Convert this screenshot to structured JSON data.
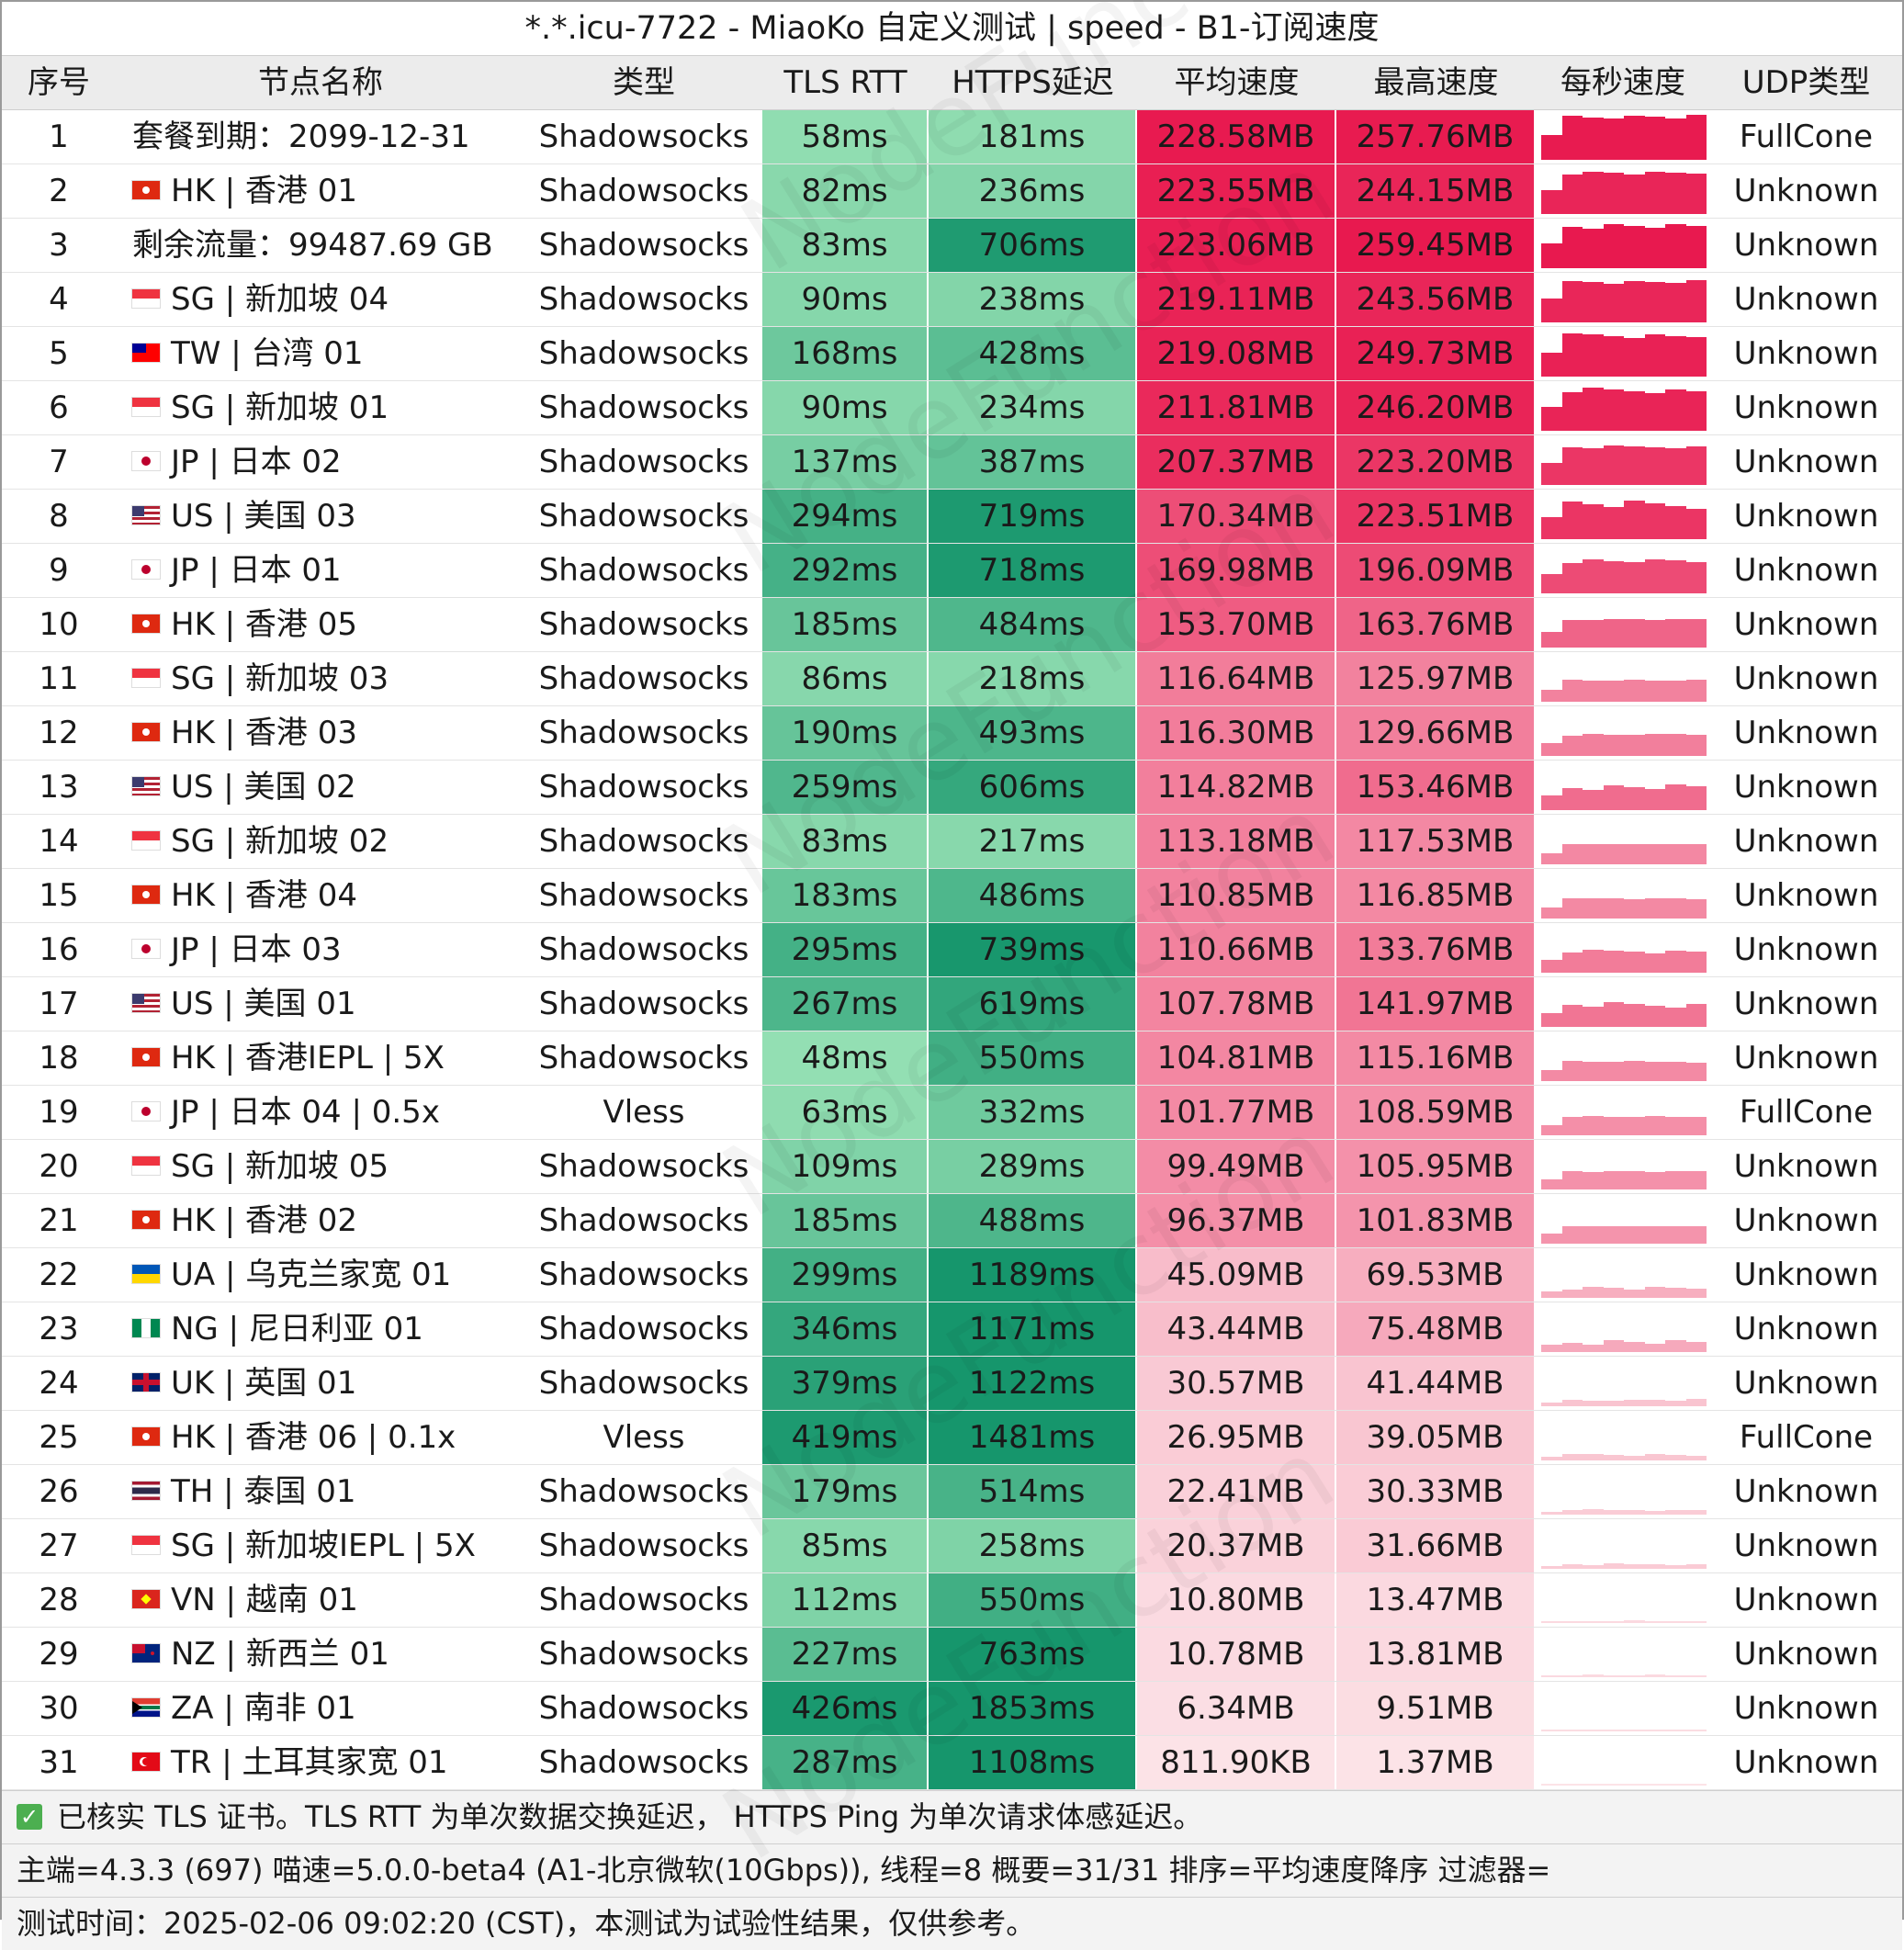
{
  "title": "*.*.icu-7722 - MiaoKo 自定义测试 | speed - B1-订阅速度",
  "headers": [
    "序号",
    "节点名称",
    "类型",
    "TLS RTT",
    "HTTPS延迟",
    "平均速度",
    "最高速度",
    "每秒速度",
    "UDP类型"
  ],
  "watermark": "NodeFunction",
  "rows": [
    {
      "no": "1",
      "flag": "",
      "name": "套餐到期：2099-12-31",
      "type": "Shadowsocks",
      "tls": "58ms",
      "https": "181ms",
      "avg": "228.58MB",
      "max": "257.76MB",
      "udp": "FullCone",
      "tls_ms": 58,
      "https_ms": 181,
      "avg_mb": 228.58,
      "max_mb": 257.76
    },
    {
      "no": "2",
      "flag": "HK",
      "name": "HK | 香港 01",
      "type": "Shadowsocks",
      "tls": "82ms",
      "https": "236ms",
      "avg": "223.55MB",
      "max": "244.15MB",
      "udp": "Unknown",
      "tls_ms": 82,
      "https_ms": 236,
      "avg_mb": 223.55,
      "max_mb": 244.15
    },
    {
      "no": "3",
      "flag": "",
      "name": "剩余流量：99487.69 GB",
      "type": "Shadowsocks",
      "tls": "83ms",
      "https": "706ms",
      "avg": "223.06MB",
      "max": "259.45MB",
      "udp": "Unknown",
      "tls_ms": 83,
      "https_ms": 706,
      "avg_mb": 223.06,
      "max_mb": 259.45
    },
    {
      "no": "4",
      "flag": "SG",
      "name": "SG | 新加坡 04",
      "type": "Shadowsocks",
      "tls": "90ms",
      "https": "238ms",
      "avg": "219.11MB",
      "max": "243.56MB",
      "udp": "Unknown",
      "tls_ms": 90,
      "https_ms": 238,
      "avg_mb": 219.11,
      "max_mb": 243.56
    },
    {
      "no": "5",
      "flag": "TW",
      "name": "TW | 台湾 01",
      "type": "Shadowsocks",
      "tls": "168ms",
      "https": "428ms",
      "avg": "219.08MB",
      "max": "249.73MB",
      "udp": "Unknown",
      "tls_ms": 168,
      "https_ms": 428,
      "avg_mb": 219.08,
      "max_mb": 249.73
    },
    {
      "no": "6",
      "flag": "SG",
      "name": "SG | 新加坡 01",
      "type": "Shadowsocks",
      "tls": "90ms",
      "https": "234ms",
      "avg": "211.81MB",
      "max": "246.20MB",
      "udp": "Unknown",
      "tls_ms": 90,
      "https_ms": 234,
      "avg_mb": 211.81,
      "max_mb": 246.2
    },
    {
      "no": "7",
      "flag": "JP",
      "name": "JP | 日本 02",
      "type": "Shadowsocks",
      "tls": "137ms",
      "https": "387ms",
      "avg": "207.37MB",
      "max": "223.20MB",
      "udp": "Unknown",
      "tls_ms": 137,
      "https_ms": 387,
      "avg_mb": 207.37,
      "max_mb": 223.2
    },
    {
      "no": "8",
      "flag": "US",
      "name": "US | 美国 03",
      "type": "Shadowsocks",
      "tls": "294ms",
      "https": "719ms",
      "avg": "170.34MB",
      "max": "223.51MB",
      "udp": "Unknown",
      "tls_ms": 294,
      "https_ms": 719,
      "avg_mb": 170.34,
      "max_mb": 223.51
    },
    {
      "no": "9",
      "flag": "JP",
      "name": "JP | 日本 01",
      "type": "Shadowsocks",
      "tls": "292ms",
      "https": "718ms",
      "avg": "169.98MB",
      "max": "196.09MB",
      "udp": "Unknown",
      "tls_ms": 292,
      "https_ms": 718,
      "avg_mb": 169.98,
      "max_mb": 196.09
    },
    {
      "no": "10",
      "flag": "HK",
      "name": "HK | 香港 05",
      "type": "Shadowsocks",
      "tls": "185ms",
      "https": "484ms",
      "avg": "153.70MB",
      "max": "163.76MB",
      "udp": "Unknown",
      "tls_ms": 185,
      "https_ms": 484,
      "avg_mb": 153.7,
      "max_mb": 163.76
    },
    {
      "no": "11",
      "flag": "SG",
      "name": "SG | 新加坡 03",
      "type": "Shadowsocks",
      "tls": "86ms",
      "https": "218ms",
      "avg": "116.64MB",
      "max": "125.97MB",
      "udp": "Unknown",
      "tls_ms": 86,
      "https_ms": 218,
      "avg_mb": 116.64,
      "max_mb": 125.97
    },
    {
      "no": "12",
      "flag": "HK",
      "name": "HK | 香港 03",
      "type": "Shadowsocks",
      "tls": "190ms",
      "https": "493ms",
      "avg": "116.30MB",
      "max": "129.66MB",
      "udp": "Unknown",
      "tls_ms": 190,
      "https_ms": 493,
      "avg_mb": 116.3,
      "max_mb": 129.66
    },
    {
      "no": "13",
      "flag": "US",
      "name": "US | 美国 02",
      "type": "Shadowsocks",
      "tls": "259ms",
      "https": "606ms",
      "avg": "114.82MB",
      "max": "153.46MB",
      "udp": "Unknown",
      "tls_ms": 259,
      "https_ms": 606,
      "avg_mb": 114.82,
      "max_mb": 153.46
    },
    {
      "no": "14",
      "flag": "SG",
      "name": "SG | 新加坡 02",
      "type": "Shadowsocks",
      "tls": "83ms",
      "https": "217ms",
      "avg": "113.18MB",
      "max": "117.53MB",
      "udp": "Unknown",
      "tls_ms": 83,
      "https_ms": 217,
      "avg_mb": 113.18,
      "max_mb": 117.53
    },
    {
      "no": "15",
      "flag": "HK",
      "name": "HK | 香港 04",
      "type": "Shadowsocks",
      "tls": "183ms",
      "https": "486ms",
      "avg": "110.85MB",
      "max": "116.85MB",
      "udp": "Unknown",
      "tls_ms": 183,
      "https_ms": 486,
      "avg_mb": 110.85,
      "max_mb": 116.85
    },
    {
      "no": "16",
      "flag": "JP",
      "name": "JP | 日本 03",
      "type": "Shadowsocks",
      "tls": "295ms",
      "https": "739ms",
      "avg": "110.66MB",
      "max": "133.76MB",
      "udp": "Unknown",
      "tls_ms": 295,
      "https_ms": 739,
      "avg_mb": 110.66,
      "max_mb": 133.76
    },
    {
      "no": "17",
      "flag": "US",
      "name": "US | 美国 01",
      "type": "Shadowsocks",
      "tls": "267ms",
      "https": "619ms",
      "avg": "107.78MB",
      "max": "141.97MB",
      "udp": "Unknown",
      "tls_ms": 267,
      "https_ms": 619,
      "avg_mb": 107.78,
      "max_mb": 141.97
    },
    {
      "no": "18",
      "flag": "HK",
      "name": "HK | 香港IEPL | 5X",
      "type": "Shadowsocks",
      "tls": "48ms",
      "https": "550ms",
      "avg": "104.81MB",
      "max": "115.16MB",
      "udp": "Unknown",
      "tls_ms": 48,
      "https_ms": 550,
      "avg_mb": 104.81,
      "max_mb": 115.16
    },
    {
      "no": "19",
      "flag": "JP",
      "name": "JP | 日本 04 | 0.5x",
      "type": "Vless",
      "tls": "63ms",
      "https": "332ms",
      "avg": "101.77MB",
      "max": "108.59MB",
      "udp": "FullCone",
      "tls_ms": 63,
      "https_ms": 332,
      "avg_mb": 101.77,
      "max_mb": 108.59
    },
    {
      "no": "20",
      "flag": "SG",
      "name": "SG | 新加坡 05",
      "type": "Shadowsocks",
      "tls": "109ms",
      "https": "289ms",
      "avg": "99.49MB",
      "max": "105.95MB",
      "udp": "Unknown",
      "tls_ms": 109,
      "https_ms": 289,
      "avg_mb": 99.49,
      "max_mb": 105.95
    },
    {
      "no": "21",
      "flag": "HK",
      "name": "HK | 香港 02",
      "type": "Shadowsocks",
      "tls": "185ms",
      "https": "488ms",
      "avg": "96.37MB",
      "max": "101.83MB",
      "udp": "Unknown",
      "tls_ms": 185,
      "https_ms": 488,
      "avg_mb": 96.37,
      "max_mb": 101.83
    },
    {
      "no": "22",
      "flag": "UA",
      "name": "UA | 乌克兰家宽 01",
      "type": "Shadowsocks",
      "tls": "299ms",
      "https": "1189ms",
      "avg": "45.09MB",
      "max": "69.53MB",
      "udp": "Unknown",
      "tls_ms": 299,
      "https_ms": 1189,
      "avg_mb": 45.09,
      "max_mb": 69.53
    },
    {
      "no": "23",
      "flag": "NG",
      "name": "NG | 尼日利亚 01",
      "type": "Shadowsocks",
      "tls": "346ms",
      "https": "1171ms",
      "avg": "43.44MB",
      "max": "75.48MB",
      "udp": "Unknown",
      "tls_ms": 346,
      "https_ms": 1171,
      "avg_mb": 43.44,
      "max_mb": 75.48
    },
    {
      "no": "24",
      "flag": "UK",
      "name": "UK | 英国 01",
      "type": "Shadowsocks",
      "tls": "379ms",
      "https": "1122ms",
      "avg": "30.57MB",
      "max": "41.44MB",
      "udp": "Unknown",
      "tls_ms": 379,
      "https_ms": 1122,
      "avg_mb": 30.57,
      "max_mb": 41.44
    },
    {
      "no": "25",
      "flag": "HK",
      "name": "HK | 香港 06 | 0.1x",
      "type": "Vless",
      "tls": "419ms",
      "https": "1481ms",
      "avg": "26.95MB",
      "max": "39.05MB",
      "udp": "FullCone",
      "tls_ms": 419,
      "https_ms": 1481,
      "avg_mb": 26.95,
      "max_mb": 39.05
    },
    {
      "no": "26",
      "flag": "TH",
      "name": "TH | 泰国 01",
      "type": "Shadowsocks",
      "tls": "179ms",
      "https": "514ms",
      "avg": "22.41MB",
      "max": "30.33MB",
      "udp": "Unknown",
      "tls_ms": 179,
      "https_ms": 514,
      "avg_mb": 22.41,
      "max_mb": 30.33
    },
    {
      "no": "27",
      "flag": "SG",
      "name": "SG | 新加坡IEPL | 5X",
      "type": "Shadowsocks",
      "tls": "85ms",
      "https": "258ms",
      "avg": "20.37MB",
      "max": "31.66MB",
      "udp": "Unknown",
      "tls_ms": 85,
      "https_ms": 258,
      "avg_mb": 20.37,
      "max_mb": 31.66
    },
    {
      "no": "28",
      "flag": "VN",
      "name": "VN | 越南 01",
      "type": "Shadowsocks",
      "tls": "112ms",
      "https": "550ms",
      "avg": "10.80MB",
      "max": "13.47MB",
      "udp": "Unknown",
      "tls_ms": 112,
      "https_ms": 550,
      "avg_mb": 10.8,
      "max_mb": 13.47
    },
    {
      "no": "29",
      "flag": "NZ",
      "name": "NZ | 新西兰 01",
      "type": "Shadowsocks",
      "tls": "227ms",
      "https": "763ms",
      "avg": "10.78MB",
      "max": "13.81MB",
      "udp": "Unknown",
      "tls_ms": 227,
      "https_ms": 763,
      "avg_mb": 10.78,
      "max_mb": 13.81
    },
    {
      "no": "30",
      "flag": "ZA",
      "name": "ZA | 南非 01",
      "type": "Shadowsocks",
      "tls": "426ms",
      "https": "1853ms",
      "avg": "6.34MB",
      "max": "9.51MB",
      "udp": "Unknown",
      "tls_ms": 426,
      "https_ms": 1853,
      "avg_mb": 6.34,
      "max_mb": 9.51
    },
    {
      "no": "31",
      "flag": "TR",
      "name": "TR | 土耳其家宽 01",
      "type": "Shadowsocks",
      "tls": "287ms",
      "https": "1108ms",
      "avg": "811.90KB",
      "max": "1.37MB",
      "udp": "Unknown",
      "tls_ms": 287,
      "https_ms": 1108,
      "avg_mb": 0.79,
      "max_mb": 1.37
    }
  ],
  "footer": {
    "check_icon": "✓",
    "note": "已核实 TLS 证书。TLS RTT 为单次数据交换延迟， HTTPS Ping 为单次请求体感延迟。",
    "info": "主端=4.3.3 (697) 喵速=5.0.0-beta4 (A1-北京微软(10Gbps)), 线程=8 概要=31/31 排序=平均速度降序 过滤器=",
    "time": "测试时间：2025-02-06 09:02:20 (CST)，本测试为试验性结果，仅供参考。"
  },
  "colors": {
    "accent": "#e8194f",
    "green_dark": "#16a070",
    "green_light": "#8fe0b4",
    "check": "#4caf50"
  }
}
